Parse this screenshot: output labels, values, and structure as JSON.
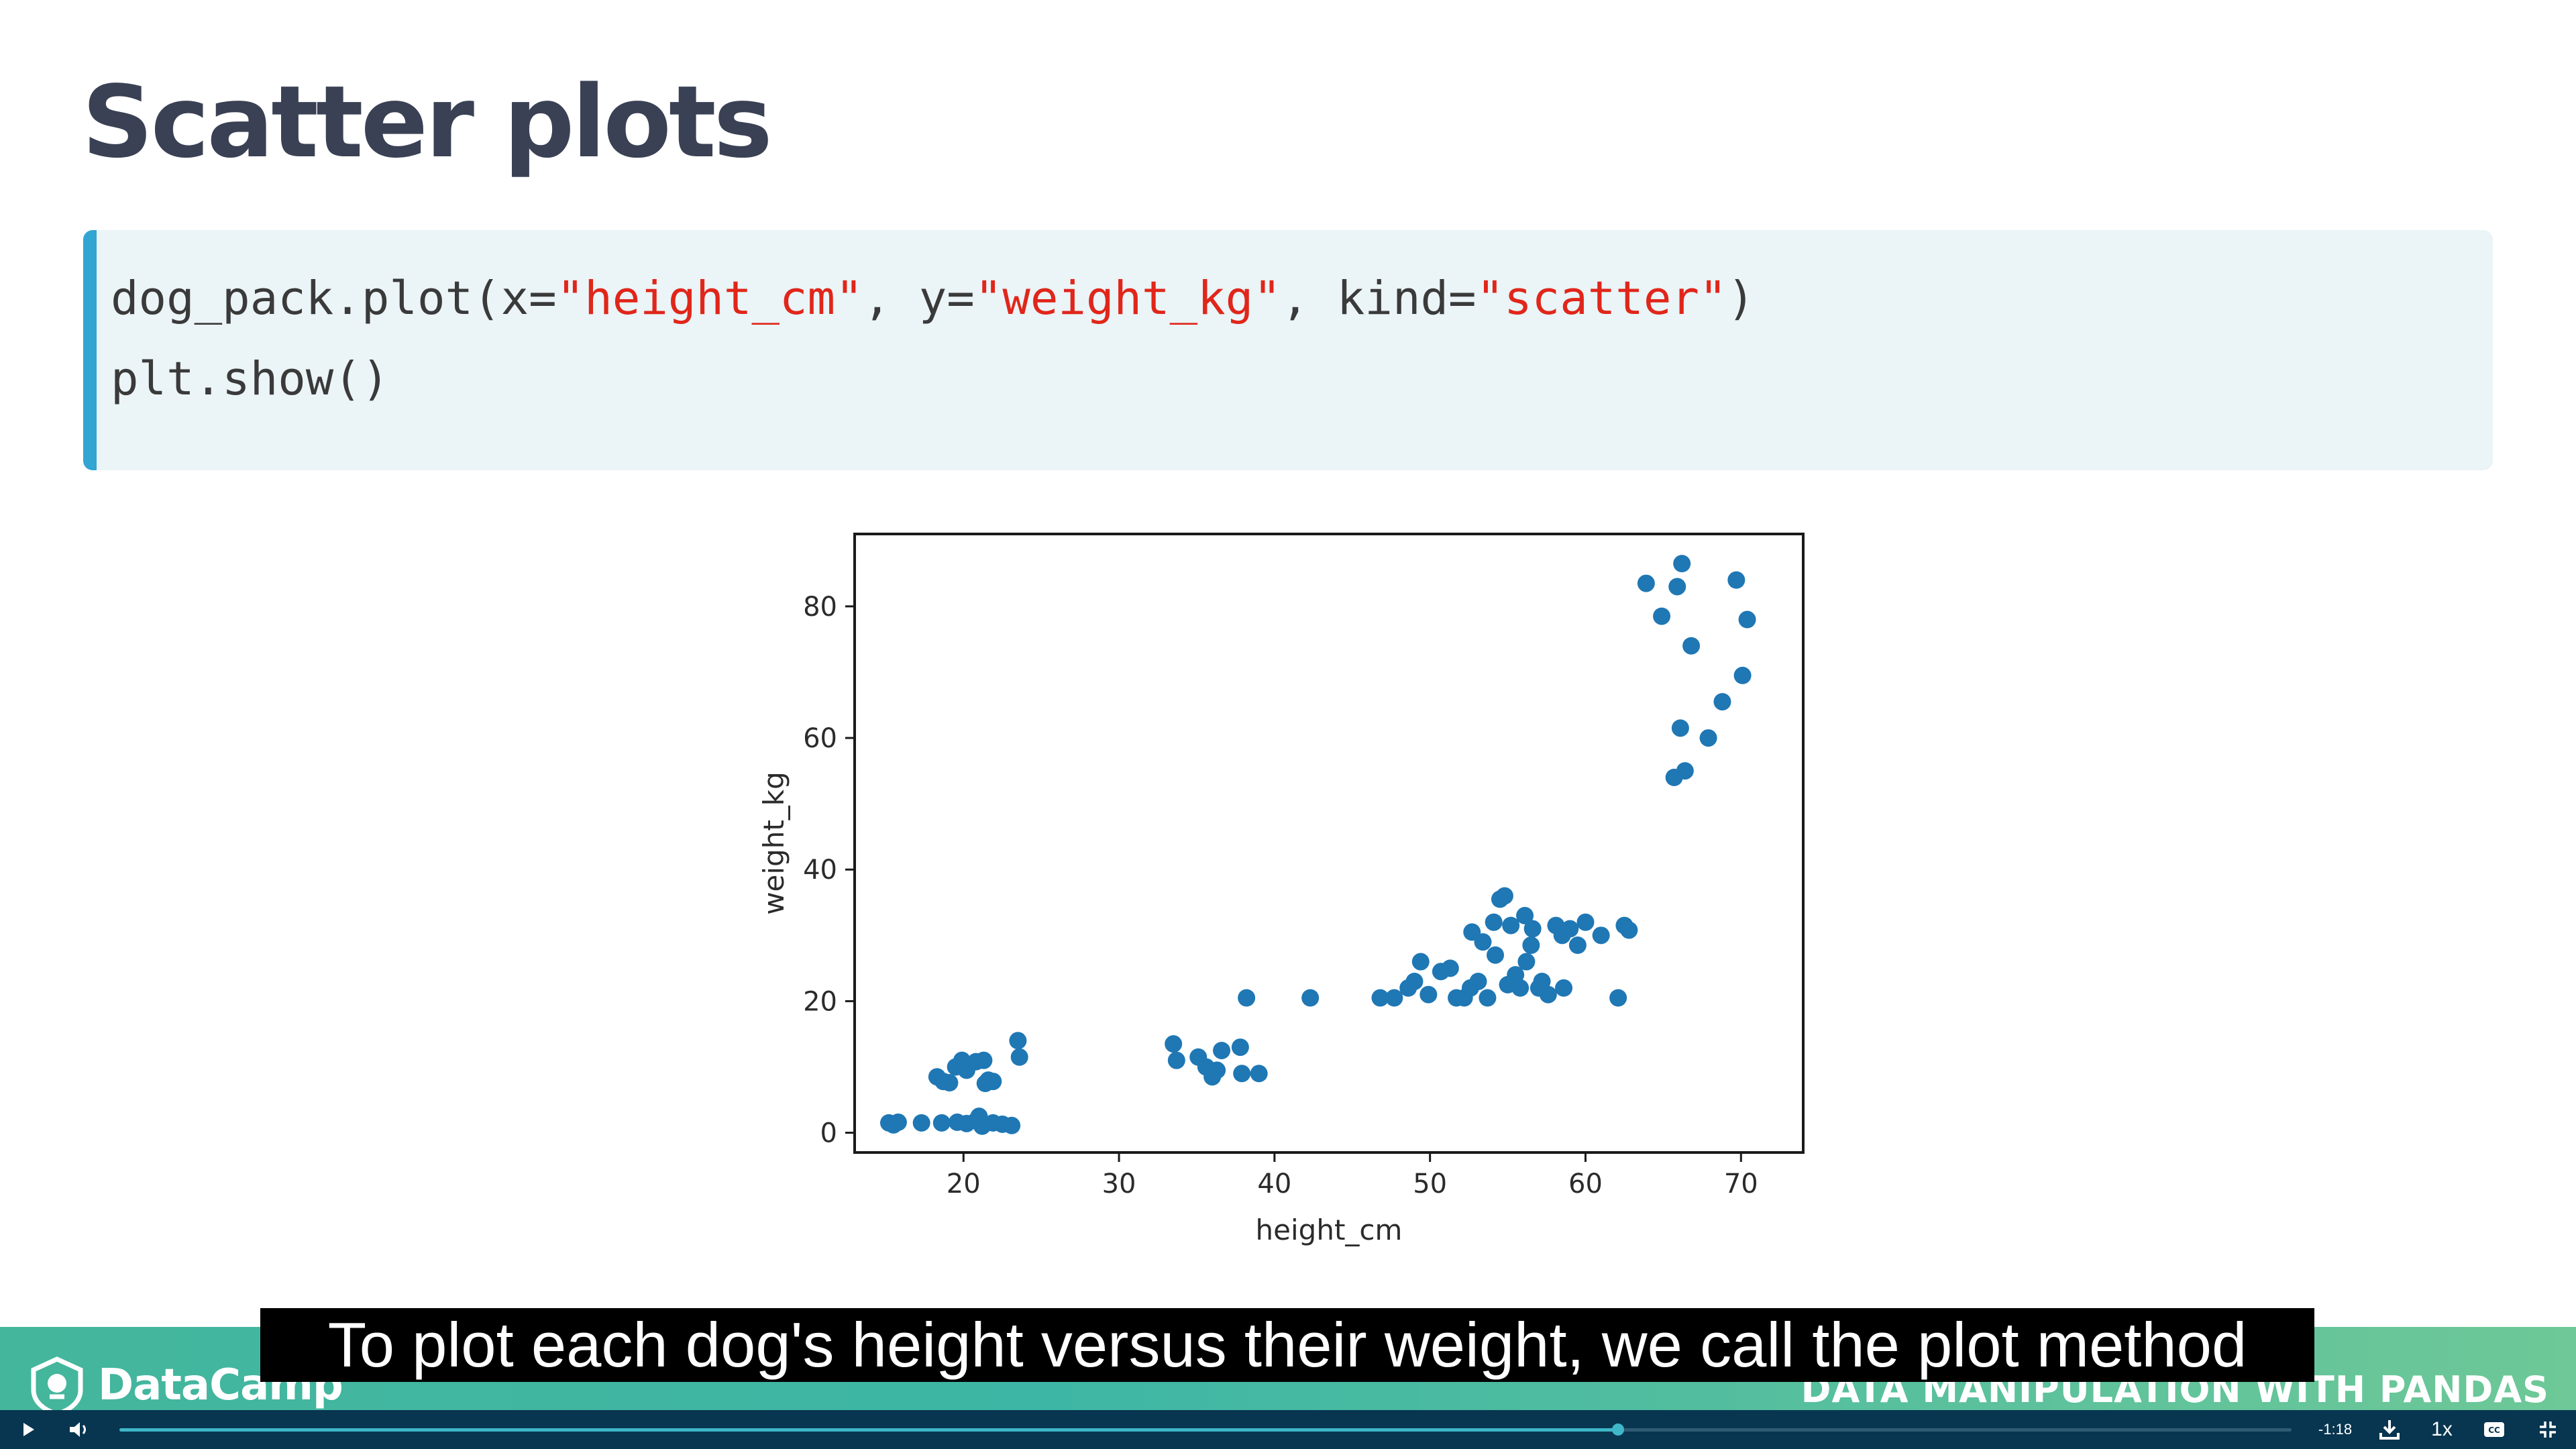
{
  "slide": {
    "title": "Scatter plots",
    "code": {
      "line1": {
        "p1": "dog_pack.plot(x=",
        "s1": "\"height_cm\"",
        "p2": ", y=",
        "s2": "\"weight_kg\"",
        "p3": ", kind=",
        "s3": "\"scatter\"",
        "p4": ")"
      },
      "line2": "plt.show()"
    }
  },
  "chart_data": {
    "type": "scatter",
    "xlabel": "height_cm",
    "ylabel": "weight_kg",
    "xlim": [
      13,
      74
    ],
    "ylim": [
      -3,
      91
    ],
    "xticks": [
      20,
      30,
      40,
      50,
      60,
      70
    ],
    "yticks": [
      0,
      20,
      40,
      60,
      80
    ],
    "grid": false,
    "color": "#1f77b4",
    "points": [
      [
        15.2,
        1.5
      ],
      [
        15.5,
        1.2
      ],
      [
        15.8,
        1.6
      ],
      [
        17.3,
        1.5
      ],
      [
        18.6,
        1.5
      ],
      [
        19.6,
        1.6
      ],
      [
        20.2,
        1.4
      ],
      [
        20.8,
        1.8
      ],
      [
        21.0,
        2.5
      ],
      [
        21.2,
        1.0
      ],
      [
        21.9,
        1.5
      ],
      [
        22.5,
        1.3
      ],
      [
        23.1,
        1.1
      ],
      [
        18.3,
        8.5
      ],
      [
        18.7,
        7.8
      ],
      [
        19.1,
        7.6
      ],
      [
        19.5,
        10.0
      ],
      [
        19.9,
        11.0
      ],
      [
        20.2,
        9.5
      ],
      [
        20.8,
        10.8
      ],
      [
        21.3,
        11.0
      ],
      [
        21.6,
        8.0
      ],
      [
        21.9,
        7.8
      ],
      [
        21.4,
        7.5
      ],
      [
        23.5,
        14.0
      ],
      [
        23.6,
        11.5
      ],
      [
        33.5,
        13.5
      ],
      [
        33.7,
        11.0
      ],
      [
        35.1,
        11.5
      ],
      [
        35.6,
        10.0
      ],
      [
        36.0,
        8.5
      ],
      [
        36.3,
        9.5
      ],
      [
        36.6,
        12.5
      ],
      [
        37.8,
        13.0
      ],
      [
        37.9,
        9.0
      ],
      [
        38.2,
        20.5
      ],
      [
        39.0,
        9.0
      ],
      [
        42.3,
        20.5
      ],
      [
        46.8,
        20.5
      ],
      [
        47.7,
        20.5
      ],
      [
        48.6,
        22.0
      ],
      [
        49.0,
        23.0
      ],
      [
        49.4,
        26.0
      ],
      [
        49.9,
        21.0
      ],
      [
        50.7,
        24.5
      ],
      [
        51.3,
        25.0
      ],
      [
        51.7,
        20.5
      ],
      [
        52.2,
        20.5
      ],
      [
        52.6,
        22.0
      ],
      [
        52.7,
        30.5
      ],
      [
        53.1,
        23.0
      ],
      [
        53.4,
        29.0
      ],
      [
        53.7,
        20.5
      ],
      [
        54.2,
        27.0
      ],
      [
        54.1,
        32.0
      ],
      [
        54.5,
        35.5
      ],
      [
        54.8,
        36.0
      ],
      [
        55.0,
        22.5
      ],
      [
        55.2,
        31.5
      ],
      [
        55.5,
        24.0
      ],
      [
        55.8,
        22.0
      ],
      [
        56.1,
        33.0
      ],
      [
        56.2,
        26.0
      ],
      [
        56.5,
        28.5
      ],
      [
        56.6,
        31.0
      ],
      [
        57.0,
        22.0
      ],
      [
        57.2,
        23.0
      ],
      [
        57.6,
        21.0
      ],
      [
        58.1,
        31.5
      ],
      [
        58.5,
        30.0
      ],
      [
        58.6,
        22.0
      ],
      [
        59.0,
        31.0
      ],
      [
        59.5,
        28.5
      ],
      [
        60.0,
        32.0
      ],
      [
        61.0,
        30.0
      ],
      [
        62.1,
        20.5
      ],
      [
        62.5,
        31.5
      ],
      [
        62.8,
        30.8
      ],
      [
        63.9,
        83.5
      ],
      [
        64.9,
        78.5
      ],
      [
        65.7,
        54.0
      ],
      [
        65.9,
        83.0
      ],
      [
        66.1,
        61.5
      ],
      [
        66.2,
        86.5
      ],
      [
        66.4,
        55.0
      ],
      [
        66.8,
        74.0
      ],
      [
        67.9,
        60.0
      ],
      [
        68.8,
        65.5
      ],
      [
        69.7,
        84.0
      ],
      [
        70.1,
        69.5
      ],
      [
        70.4,
        78.0
      ]
    ]
  },
  "footer": {
    "brand": "DataCamp",
    "course": "DATA MANIPULATION WITH PANDAS"
  },
  "caption": "To plot each dog's height versus their weight, we call the plot method",
  "player": {
    "time_remaining": "-1:18",
    "speed": "1x",
    "progress_fraction": 0.69,
    "accent": "#3fb7c8"
  }
}
